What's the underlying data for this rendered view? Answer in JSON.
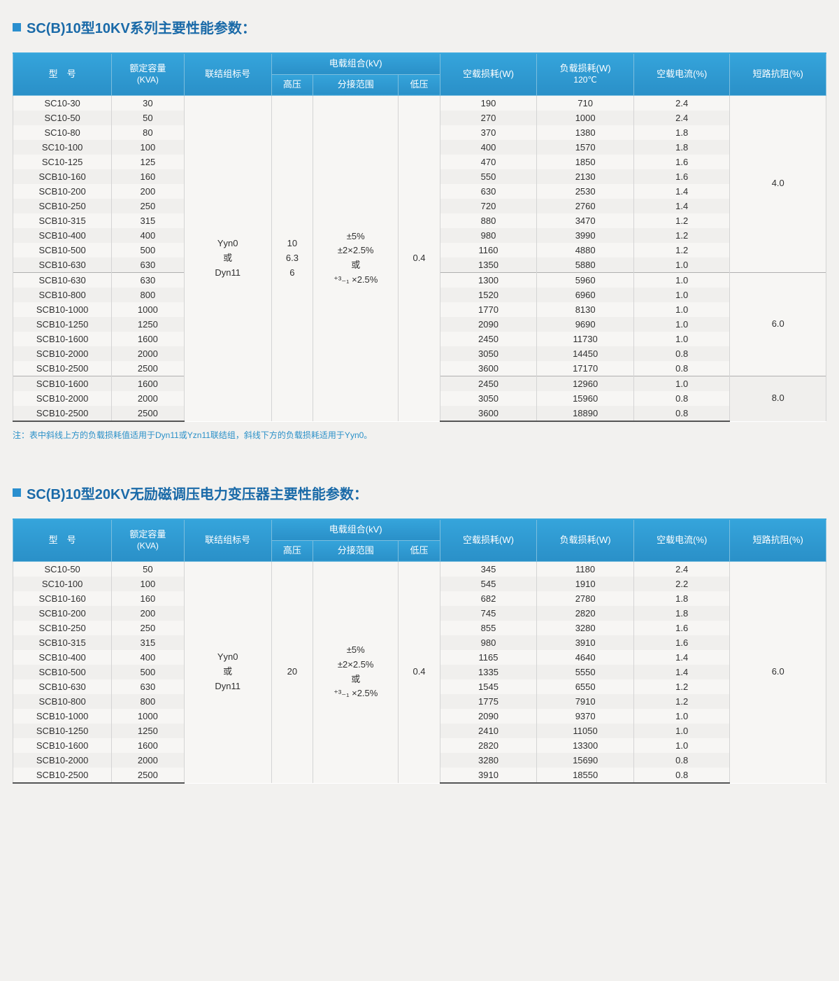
{
  "section1": {
    "title": "SC(B)10型10KV系列主要性能参数：",
    "header": {
      "model": "型　号",
      "capacity": "额定容量",
      "capacity_unit": "(KVA)",
      "group": "联结组标号",
      "load_combo": "电载组合(kV)",
      "hv": "高压",
      "tap": "分接范围",
      "lv": "低压",
      "noload_loss": "空载损耗(W)",
      "load_loss": "负载损耗(W)",
      "load_loss_sub": "120℃",
      "noload_current": "空载电流(%)",
      "short_imp": "短路抗阻(%)"
    },
    "merged": {
      "group": "Yyn0\n或\nDyn11",
      "hv": "10\n6.3\n6",
      "tap": "±5%\n±2×2.5%\n或\n⁺³₋₁ ×2.5%",
      "lv": "0.4"
    },
    "groups": [
      {
        "impedance": "4.0",
        "rows": [
          {
            "model": "SC10-30",
            "kva": "30",
            "nll": "190",
            "ll": "710",
            "nlc": "2.4"
          },
          {
            "model": "SC10-50",
            "kva": "50",
            "nll": "270",
            "ll": "1000",
            "nlc": "2.4"
          },
          {
            "model": "SC10-80",
            "kva": "80",
            "nll": "370",
            "ll": "1380",
            "nlc": "1.8"
          },
          {
            "model": "SC10-100",
            "kva": "100",
            "nll": "400",
            "ll": "1570",
            "nlc": "1.8"
          },
          {
            "model": "SC10-125",
            "kva": "125",
            "nll": "470",
            "ll": "1850",
            "nlc": "1.6"
          },
          {
            "model": "SCB10-160",
            "kva": "160",
            "nll": "550",
            "ll": "2130",
            "nlc": "1.6"
          },
          {
            "model": "SCB10-200",
            "kva": "200",
            "nll": "630",
            "ll": "2530",
            "nlc": "1.4"
          },
          {
            "model": "SCB10-250",
            "kva": "250",
            "nll": "720",
            "ll": "2760",
            "nlc": "1.4"
          },
          {
            "model": "SCB10-315",
            "kva": "315",
            "nll": "880",
            "ll": "3470",
            "nlc": "1.2"
          },
          {
            "model": "SCB10-400",
            "kva": "400",
            "nll": "980",
            "ll": "3990",
            "nlc": "1.2"
          },
          {
            "model": "SCB10-500",
            "kva": "500",
            "nll": "1160",
            "ll": "4880",
            "nlc": "1.2"
          },
          {
            "model": "SCB10-630",
            "kva": "630",
            "nll": "1350",
            "ll": "5880",
            "nlc": "1.0"
          }
        ]
      },
      {
        "impedance": "6.0",
        "rows": [
          {
            "model": "SCB10-630",
            "kva": "630",
            "nll": "1300",
            "ll": "5960",
            "nlc": "1.0"
          },
          {
            "model": "SCB10-800",
            "kva": "800",
            "nll": "1520",
            "ll": "6960",
            "nlc": "1.0"
          },
          {
            "model": "SCB10-1000",
            "kva": "1000",
            "nll": "1770",
            "ll": "8130",
            "nlc": "1.0"
          },
          {
            "model": "SCB10-1250",
            "kva": "1250",
            "nll": "2090",
            "ll": "9690",
            "nlc": "1.0"
          },
          {
            "model": "SCB10-1600",
            "kva": "1600",
            "nll": "2450",
            "ll": "11730",
            "nlc": "1.0"
          },
          {
            "model": "SCB10-2000",
            "kva": "2000",
            "nll": "3050",
            "ll": "14450",
            "nlc": "0.8"
          },
          {
            "model": "SCB10-2500",
            "kva": "2500",
            "nll": "3600",
            "ll": "17170",
            "nlc": "0.8"
          }
        ]
      },
      {
        "impedance": "8.0",
        "rows": [
          {
            "model": "SCB10-1600",
            "kva": "1600",
            "nll": "2450",
            "ll": "12960",
            "nlc": "1.0"
          },
          {
            "model": "SCB10-2000",
            "kva": "2000",
            "nll": "3050",
            "ll": "15960",
            "nlc": "0.8"
          },
          {
            "model": "SCB10-2500",
            "kva": "2500",
            "nll": "3600",
            "ll": "18890",
            "nlc": "0.8"
          }
        ]
      }
    ],
    "footnote": "注：表中斜线上方的负载损耗值适用于Dyn11或Yzn11联结组，斜线下方的负载损耗适用于Yyn0。"
  },
  "section2": {
    "title": "SC(B)10型20KV无励磁调压电力变压器主要性能参数：",
    "header": {
      "model": "型　号",
      "capacity": "额定容量",
      "capacity_unit": "(KVA)",
      "group": "联结组标号",
      "load_combo": "电载组合(kV)",
      "hv": "高压",
      "tap": "分接范围",
      "lv": "低压",
      "noload_loss": "空载损耗(W)",
      "load_loss": "负载损耗(W)",
      "noload_current": "空载电流(%)",
      "short_imp": "短路抗阻(%)"
    },
    "merged": {
      "group": "Yyn0\n或\nDyn11",
      "hv": "20",
      "tap": "±5%\n±2×2.5%\n或\n⁺³₋₁ ×2.5%",
      "lv": "0.4",
      "impedance": "6.0"
    },
    "rows": [
      {
        "model": "SC10-50",
        "kva": "50",
        "nll": "345",
        "ll": "1180",
        "nlc": "2.4"
      },
      {
        "model": "SC10-100",
        "kva": "100",
        "nll": "545",
        "ll": "1910",
        "nlc": "2.2"
      },
      {
        "model": "SCB10-160",
        "kva": "160",
        "nll": "682",
        "ll": "2780",
        "nlc": "1.8"
      },
      {
        "model": "SCB10-200",
        "kva": "200",
        "nll": "745",
        "ll": "2820",
        "nlc": "1.8"
      },
      {
        "model": "SCB10-250",
        "kva": "250",
        "nll": "855",
        "ll": "3280",
        "nlc": "1.6"
      },
      {
        "model": "SCB10-315",
        "kva": "315",
        "nll": "980",
        "ll": "3910",
        "nlc": "1.6"
      },
      {
        "model": "SCB10-400",
        "kva": "400",
        "nll": "1165",
        "ll": "4640",
        "nlc": "1.4"
      },
      {
        "model": "SCB10-500",
        "kva": "500",
        "nll": "1335",
        "ll": "5550",
        "nlc": "1.4"
      },
      {
        "model": "SCB10-630",
        "kva": "630",
        "nll": "1545",
        "ll": "6550",
        "nlc": "1.2"
      },
      {
        "model": "SCB10-800",
        "kva": "800",
        "nll": "1775",
        "ll": "7910",
        "nlc": "1.2"
      },
      {
        "model": "SCB10-1000",
        "kva": "1000",
        "nll": "2090",
        "ll": "9370",
        "nlc": "1.0"
      },
      {
        "model": "SCB10-1250",
        "kva": "1250",
        "nll": "2410",
        "ll": "11050",
        "nlc": "1.0"
      },
      {
        "model": "SCB10-1600",
        "kva": "1600",
        "nll": "2820",
        "ll": "13300",
        "nlc": "1.0"
      },
      {
        "model": "SCB10-2000",
        "kva": "2000",
        "nll": "3280",
        "ll": "15690",
        "nlc": "0.8"
      },
      {
        "model": "SCB10-2500",
        "kva": "2500",
        "nll": "3910",
        "ll": "18550",
        "nlc": "0.8"
      }
    ]
  },
  "colors": {
    "header_bg": "#2a90c8",
    "accent": "#2a8fcf",
    "title": "#1a6aa8",
    "footnote": "#2a90c8",
    "row_border": "#d4d4d4"
  }
}
